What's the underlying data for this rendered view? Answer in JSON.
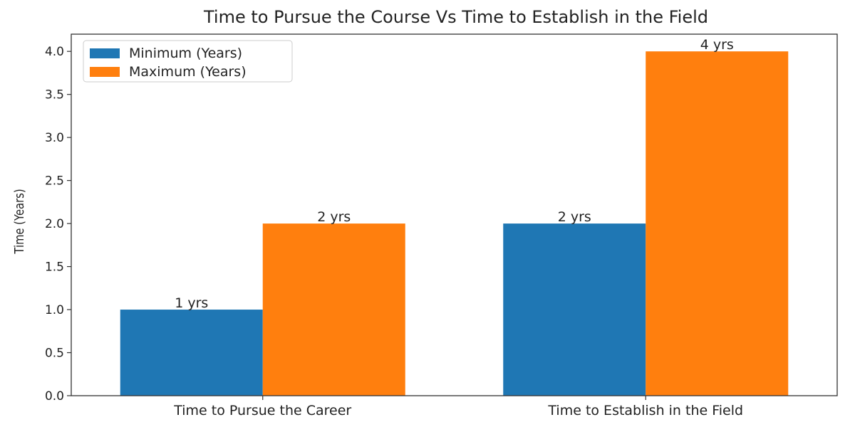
{
  "chart_data": {
    "type": "bar",
    "title": "Time to Pursue the Course Vs Time to Establish in the Field",
    "xlabel": "",
    "ylabel": "Time (Years)",
    "categories": [
      "Time to Pursue the Career",
      "Time to Establish in the Field"
    ],
    "series": [
      {
        "name": "Minimum (Years)",
        "values": [
          1,
          2
        ],
        "labels": [
          "1 yrs",
          "2 yrs"
        ],
        "color": "#1f77b4"
      },
      {
        "name": "Maximum (Years)",
        "values": [
          2,
          4
        ],
        "labels": [
          "2 yrs",
          "4 yrs"
        ],
        "color": "#ff7f0e"
      }
    ],
    "ylim": [
      0,
      4.2
    ],
    "yticks": [
      "0.0",
      "0.5",
      "1.0",
      "1.5",
      "2.0",
      "2.5",
      "3.0",
      "3.5",
      "4.0"
    ],
    "legend": "top-left",
    "grid": false
  }
}
